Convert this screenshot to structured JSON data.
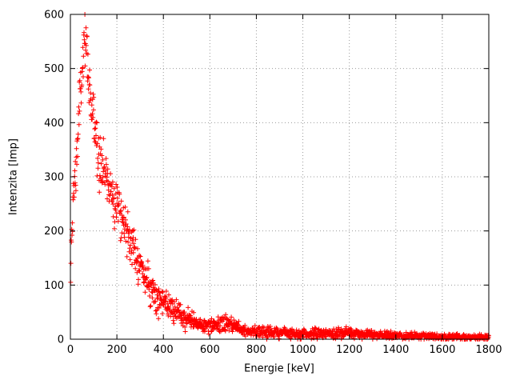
{
  "page": {
    "background": "#ffffff"
  },
  "chart_data": {
    "type": "scatter",
    "title": "",
    "xlabel": "Energie [keV]",
    "ylabel": "Intenzita [Imp]",
    "xlim": [
      0,
      1800
    ],
    "ylim": [
      0,
      600
    ],
    "xticks": [
      0,
      200,
      400,
      600,
      800,
      1000,
      1200,
      1400,
      1600,
      1800
    ],
    "yticks": [
      0,
      100,
      200,
      300,
      400,
      500,
      600
    ],
    "grid": true,
    "legend": "none",
    "marker": "plus",
    "marker_color": "#ff0000",
    "axis_color": "#000000",
    "grid_color": "#9a9a9a",
    "point_step_keV": 1.2,
    "noise_sigma_scale": 1.4,
    "profile": [
      [
        0,
        100
      ],
      [
        4,
        160
      ],
      [
        8,
        215
      ],
      [
        12,
        255
      ],
      [
        16,
        280
      ],
      [
        20,
        300
      ],
      [
        24,
        320
      ],
      [
        28,
        345
      ],
      [
        32,
        375
      ],
      [
        36,
        408
      ],
      [
        40,
        438
      ],
      [
        45,
        468
      ],
      [
        50,
        495
      ],
      [
        55,
        515
      ],
      [
        60,
        530
      ],
      [
        65,
        535
      ],
      [
        70,
        524
      ],
      [
        75,
        505
      ],
      [
        80,
        482
      ],
      [
        85,
        458
      ],
      [
        90,
        433
      ],
      [
        95,
        414
      ],
      [
        100,
        399
      ],
      [
        110,
        372
      ],
      [
        120,
        352
      ],
      [
        130,
        333
      ],
      [
        140,
        316
      ],
      [
        150,
        304
      ],
      [
        160,
        294
      ],
      [
        170,
        284
      ],
      [
        180,
        274
      ],
      [
        190,
        264
      ],
      [
        200,
        254
      ],
      [
        210,
        241
      ],
      [
        220,
        228
      ],
      [
        230,
        216
      ],
      [
        240,
        204
      ],
      [
        250,
        192
      ],
      [
        260,
        181
      ],
      [
        270,
        169
      ],
      [
        280,
        158
      ],
      [
        290,
        147
      ],
      [
        300,
        137
      ],
      [
        310,
        127
      ],
      [
        320,
        117
      ],
      [
        330,
        108
      ],
      [
        340,
        100
      ],
      [
        350,
        93
      ],
      [
        360,
        87
      ],
      [
        370,
        81
      ],
      [
        380,
        76
      ],
      [
        390,
        71
      ],
      [
        400,
        67
      ],
      [
        420,
        60
      ],
      [
        440,
        53
      ],
      [
        460,
        47
      ],
      [
        480,
        42
      ],
      [
        500,
        38
      ],
      [
        520,
        34
      ],
      [
        540,
        30
      ],
      [
        560,
        27
      ],
      [
        580,
        25
      ],
      [
        600,
        23
      ],
      [
        620,
        24
      ],
      [
        640,
        26
      ],
      [
        660,
        29
      ],
      [
        680,
        29
      ],
      [
        700,
        26
      ],
      [
        720,
        22
      ],
      [
        740,
        19
      ],
      [
        760,
        17
      ],
      [
        780,
        15
      ],
      [
        800,
        14
      ],
      [
        850,
        13
      ],
      [
        900,
        12
      ],
      [
        950,
        11
      ],
      [
        1000,
        10
      ],
      [
        1050,
        10
      ],
      [
        1100,
        10
      ],
      [
        1150,
        11
      ],
      [
        1200,
        12
      ],
      [
        1250,
        10
      ],
      [
        1300,
        8
      ],
      [
        1350,
        7
      ],
      [
        1400,
        7
      ],
      [
        1450,
        6
      ],
      [
        1500,
        6
      ],
      [
        1550,
        5
      ],
      [
        1600,
        5
      ],
      [
        1650,
        5
      ],
      [
        1700,
        4
      ],
      [
        1750,
        4
      ],
      [
        1800,
        4
      ]
    ]
  }
}
